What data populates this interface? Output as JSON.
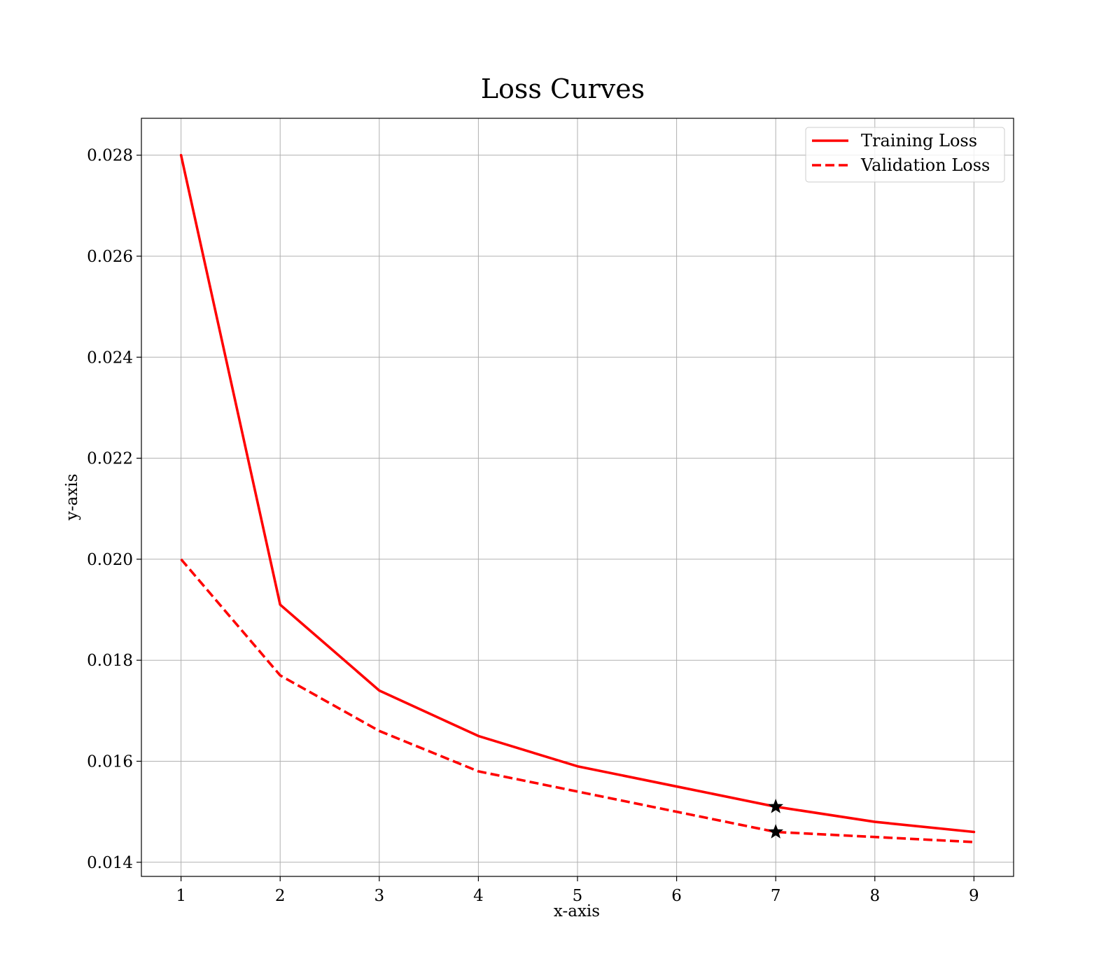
{
  "chart_data": {
    "type": "line",
    "title": "Loss Curves",
    "xlabel": "x-axis",
    "ylabel": "y-axis",
    "x": [
      1,
      2,
      3,
      4,
      5,
      6,
      7,
      8,
      9
    ],
    "xticks": [
      "1",
      "2",
      "3",
      "4",
      "5",
      "6",
      "7",
      "8",
      "9"
    ],
    "yticks": [
      "0.014",
      "0.016",
      "0.018",
      "0.020",
      "0.022",
      "0.024",
      "0.026",
      "0.028"
    ],
    "xlim": [
      0.6,
      9.4
    ],
    "ylim": [
      0.01372,
      0.02873
    ],
    "grid": true,
    "legend_position": "top-right",
    "series": [
      {
        "name": "Training Loss",
        "style": "solid",
        "color": "#ff0000",
        "values": [
          0.028,
          0.0191,
          0.0174,
          0.0165,
          0.0159,
          0.0155,
          0.0151,
          0.0148,
          0.0146
        ]
      },
      {
        "name": "Validation Loss",
        "style": "dashed",
        "color": "#ff0000",
        "values": [
          0.02,
          0.0177,
          0.0166,
          0.0158,
          0.0154,
          0.015,
          0.0146,
          0.0145,
          0.0144
        ]
      }
    ],
    "markers": [
      {
        "series": "Training Loss",
        "x": 7,
        "y": 0.0151,
        "symbol": "star",
        "color": "#000000"
      },
      {
        "series": "Validation Loss",
        "x": 7,
        "y": 0.0146,
        "symbol": "star",
        "color": "#000000"
      }
    ]
  }
}
